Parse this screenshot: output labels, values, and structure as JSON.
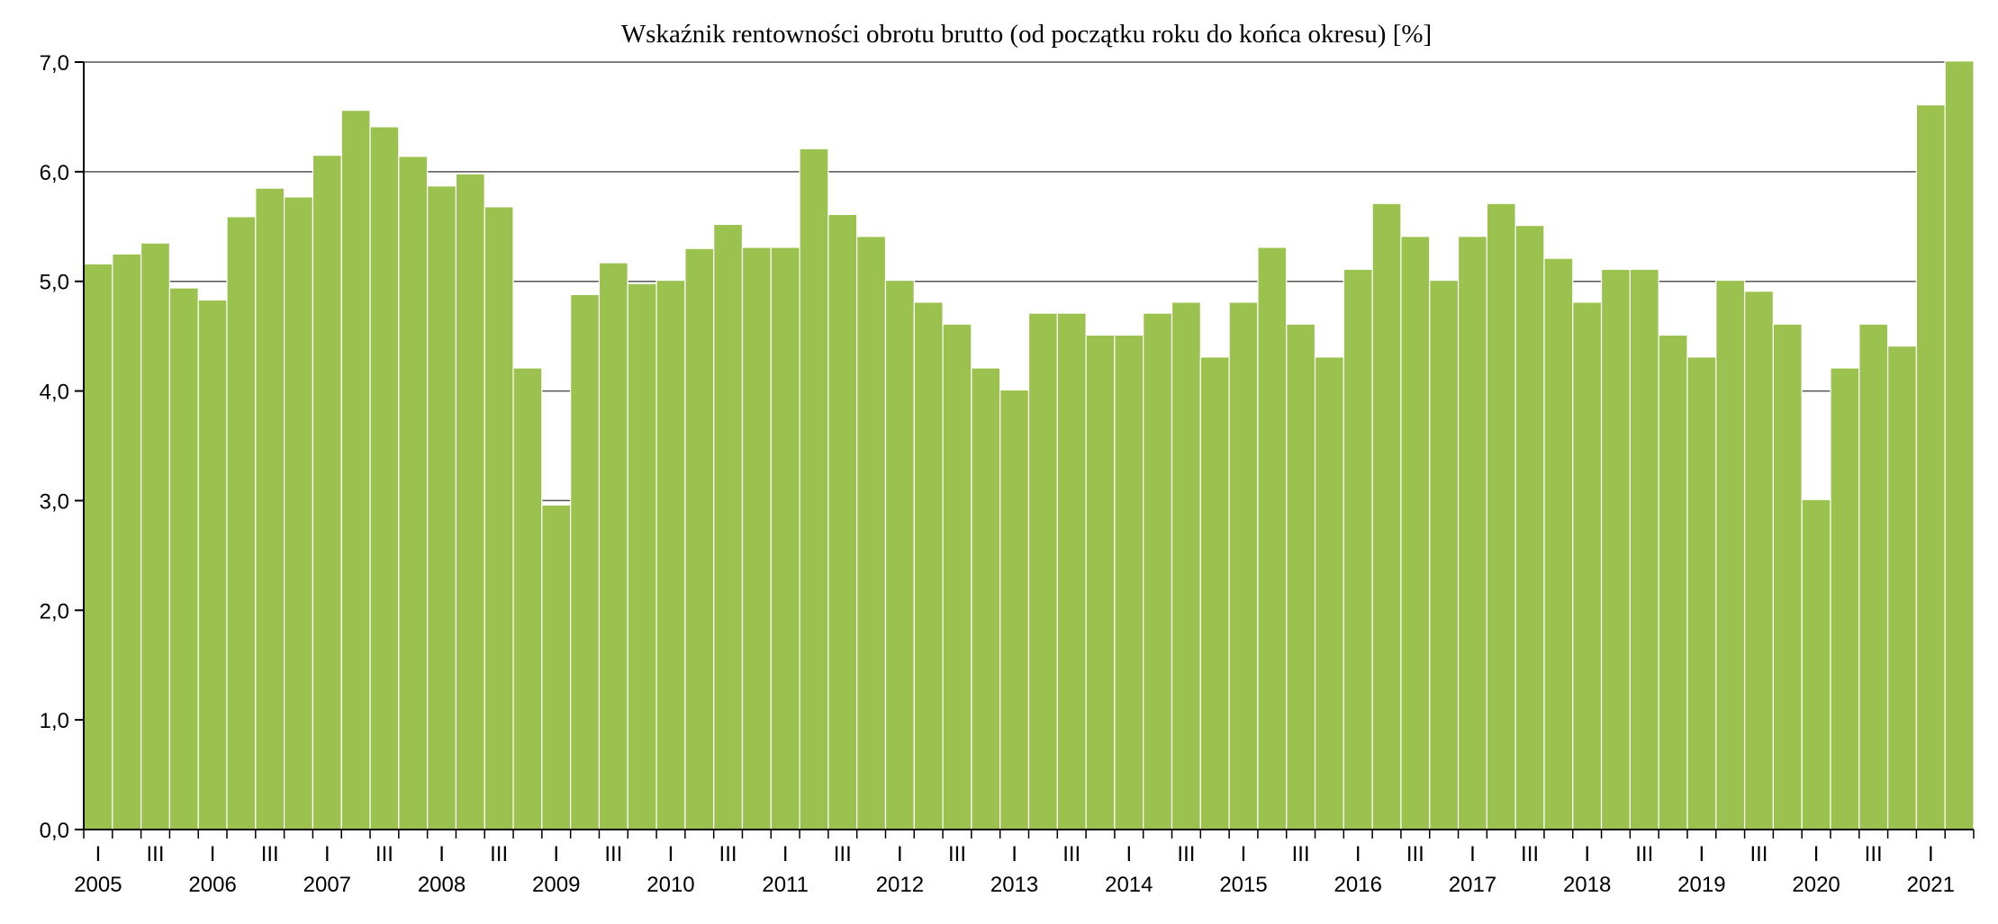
{
  "chart_data": {
    "type": "bar",
    "title": "Wskaźnik rentowności obrotu brutto (od początku roku do końca okresu) [%]",
    "xlabel": "",
    "ylabel": "",
    "ylim": [
      0,
      7
    ],
    "yticks": [
      "0,0",
      "1,0",
      "2,0",
      "3,0",
      "4,0",
      "5,0",
      "6,0",
      "7,0"
    ],
    "grid": true,
    "legend": "none",
    "colors": {
      "bar": "#9bc24e",
      "bar_edge": "#ffffff",
      "grid": "#555555",
      "axis": "#000000",
      "text": "#000000"
    },
    "quarter_labels": [
      "I",
      "",
      "III",
      ""
    ],
    "years": [
      "2005",
      "2006",
      "2007",
      "2008",
      "2009",
      "2010",
      "2011",
      "2012",
      "2013",
      "2014",
      "2015",
      "2016",
      "2017",
      "2018",
      "2019",
      "2020",
      "2021"
    ],
    "categories": [
      "2005 I",
      "2005 II",
      "2005 III",
      "2005 IV",
      "2006 I",
      "2006 II",
      "2006 III",
      "2006 IV",
      "2007 I",
      "2007 II",
      "2007 III",
      "2007 IV",
      "2008 I",
      "2008 II",
      "2008 III",
      "2008 IV",
      "2009 I",
      "2009 II",
      "2009 III",
      "2009 IV",
      "2010 I",
      "2010 II",
      "2010 III",
      "2010 IV",
      "2011 I",
      "2011 II",
      "2011 III",
      "2011 IV",
      "2012 I",
      "2012 II",
      "2012 III",
      "2012 IV",
      "2013 I",
      "2013 II",
      "2013 III",
      "2013 IV",
      "2014 I",
      "2014 II",
      "2014 III",
      "2014 IV",
      "2015 I",
      "2015 II",
      "2015 III",
      "2015 IV",
      "2016 I",
      "2016 II",
      "2016 III",
      "2016 IV",
      "2017 I",
      "2017 II",
      "2017 III",
      "2017 IV",
      "2018 I",
      "2018 II",
      "2018 III",
      "2018 IV",
      "2019 I",
      "2019 II",
      "2019 III",
      "2019 IV",
      "2020 I",
      "2020 II",
      "2020 III",
      "2020 IV",
      "2021 I",
      "2021 II"
    ],
    "values": [
      5.16,
      5.25,
      5.35,
      4.94,
      4.83,
      5.59,
      5.85,
      5.77,
      6.15,
      6.56,
      6.41,
      6.14,
      5.87,
      5.98,
      5.68,
      4.21,
      2.96,
      4.88,
      5.17,
      4.98,
      5.01,
      5.3,
      5.52,
      5.31,
      5.31,
      6.21,
      5.61,
      5.41,
      5.01,
      4.81,
      4.61,
      4.21,
      4.01,
      4.71,
      4.71,
      4.51,
      4.51,
      4.71,
      4.81,
      4.31,
      4.81,
      5.31,
      4.61,
      4.31,
      5.11,
      5.71,
      5.41,
      5.01,
      5.41,
      5.71,
      5.51,
      5.21,
      4.81,
      5.11,
      5.11,
      4.51,
      4.31,
      5.01,
      4.91,
      4.61,
      3.01,
      4.21,
      4.61,
      4.41,
      6.61,
      7.01
    ]
  }
}
